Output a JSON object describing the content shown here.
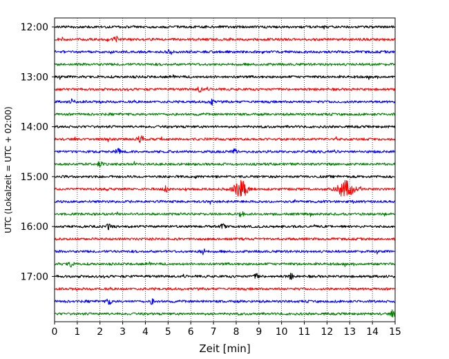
{
  "chart_data": {
    "type": "line",
    "title": "",
    "xlabel": "Zeit  [min]",
    "ylabel": "UTC (Lokalzeit = UTC + 02:00)",
    "xlim": [
      0,
      15
    ],
    "x_ticks": [
      0,
      1,
      2,
      3,
      4,
      5,
      6,
      7,
      8,
      9,
      10,
      11,
      12,
      13,
      14,
      15
    ],
    "x_tick_labels": [
      "0",
      "1",
      "2",
      "3",
      "4",
      "5",
      "6",
      "7",
      "8",
      "9",
      "10",
      "11",
      "12",
      "13",
      "14",
      "15"
    ],
    "y_tick_labels": [
      "12:00",
      "13:00",
      "14:00",
      "15:00",
      "16:00",
      "17:00"
    ],
    "y_tick_rows": [
      0,
      4,
      8,
      12,
      16,
      20
    ],
    "grid": {
      "x": true,
      "y": false,
      "style": "dotted"
    },
    "row_minutes": 15,
    "color_cycle": [
      "#000000",
      "#ff0000",
      "#0000ff",
      "#008000"
    ],
    "rows": [
      {
        "start": "12:00",
        "color": "#000000"
      },
      {
        "start": "12:15",
        "color": "#ff0000"
      },
      {
        "start": "12:30",
        "color": "#0000ff"
      },
      {
        "start": "12:45",
        "color": "#008000"
      },
      {
        "start": "13:00",
        "color": "#000000"
      },
      {
        "start": "13:15",
        "color": "#ff0000"
      },
      {
        "start": "13:30",
        "color": "#0000ff"
      },
      {
        "start": "13:45",
        "color": "#008000"
      },
      {
        "start": "14:00",
        "color": "#000000"
      },
      {
        "start": "14:15",
        "color": "#ff0000"
      },
      {
        "start": "14:30",
        "color": "#0000ff"
      },
      {
        "start": "14:45",
        "color": "#008000"
      },
      {
        "start": "15:00",
        "color": "#000000"
      },
      {
        "start": "15:15",
        "color": "#ff0000"
      },
      {
        "start": "15:30",
        "color": "#0000ff"
      },
      {
        "start": "15:45",
        "color": "#008000"
      },
      {
        "start": "16:00",
        "color": "#000000"
      },
      {
        "start": "16:15",
        "color": "#ff0000"
      },
      {
        "start": "16:30",
        "color": "#0000ff"
      },
      {
        "start": "16:45",
        "color": "#008000"
      },
      {
        "start": "17:00",
        "color": "#000000"
      },
      {
        "start": "17:15",
        "color": "#ff0000"
      },
      {
        "start": "17:30",
        "color": "#0000ff"
      },
      {
        "start": "17:45",
        "color": "#008000"
      }
    ],
    "events": [
      {
        "row": 13,
        "minute": 8.2,
        "amplitude": 1.8,
        "width": 0.3
      },
      {
        "row": 13,
        "minute": 12.8,
        "amplitude": 1.8,
        "width": 0.35
      },
      {
        "row": 13,
        "minute": 4.9,
        "amplitude": 0.6,
        "width": 0.1
      },
      {
        "row": 1,
        "minute": 2.7,
        "amplitude": 0.7,
        "width": 0.1
      },
      {
        "row": 2,
        "minute": 5.1,
        "amplitude": 0.5,
        "width": 0.1
      },
      {
        "row": 5,
        "minute": 6.4,
        "amplitude": 0.7,
        "width": 0.1
      },
      {
        "row": 6,
        "minute": 0.8,
        "amplitude": 0.7,
        "width": 0.08
      },
      {
        "row": 6,
        "minute": 6.9,
        "amplitude": 0.8,
        "width": 0.1
      },
      {
        "row": 9,
        "minute": 3.8,
        "amplitude": 0.7,
        "width": 0.15
      },
      {
        "row": 10,
        "minute": 2.8,
        "amplitude": 0.6,
        "width": 0.1
      },
      {
        "row": 10,
        "minute": 7.9,
        "amplitude": 0.5,
        "width": 0.1
      },
      {
        "row": 11,
        "minute": 2.0,
        "amplitude": 0.6,
        "width": 0.1
      },
      {
        "row": 15,
        "minute": 8.2,
        "amplitude": 0.7,
        "width": 0.1
      },
      {
        "row": 16,
        "minute": 2.4,
        "amplitude": 0.6,
        "width": 0.1
      },
      {
        "row": 16,
        "minute": 7.4,
        "amplitude": 0.5,
        "width": 0.1
      },
      {
        "row": 18,
        "minute": 6.5,
        "amplitude": 0.7,
        "width": 0.12
      },
      {
        "row": 19,
        "minute": 0.7,
        "amplitude": 0.6,
        "width": 0.1
      },
      {
        "row": 20,
        "minute": 8.9,
        "amplitude": 0.5,
        "width": 0.12
      },
      {
        "row": 20,
        "minute": 10.4,
        "amplitude": 0.6,
        "width": 0.1
      },
      {
        "row": 22,
        "minute": 2.4,
        "amplitude": 0.7,
        "width": 0.1
      },
      {
        "row": 22,
        "minute": 4.3,
        "amplitude": 0.5,
        "width": 0.1
      },
      {
        "row": 23,
        "minute": 14.9,
        "amplitude": 0.6,
        "width": 0.1
      }
    ]
  }
}
